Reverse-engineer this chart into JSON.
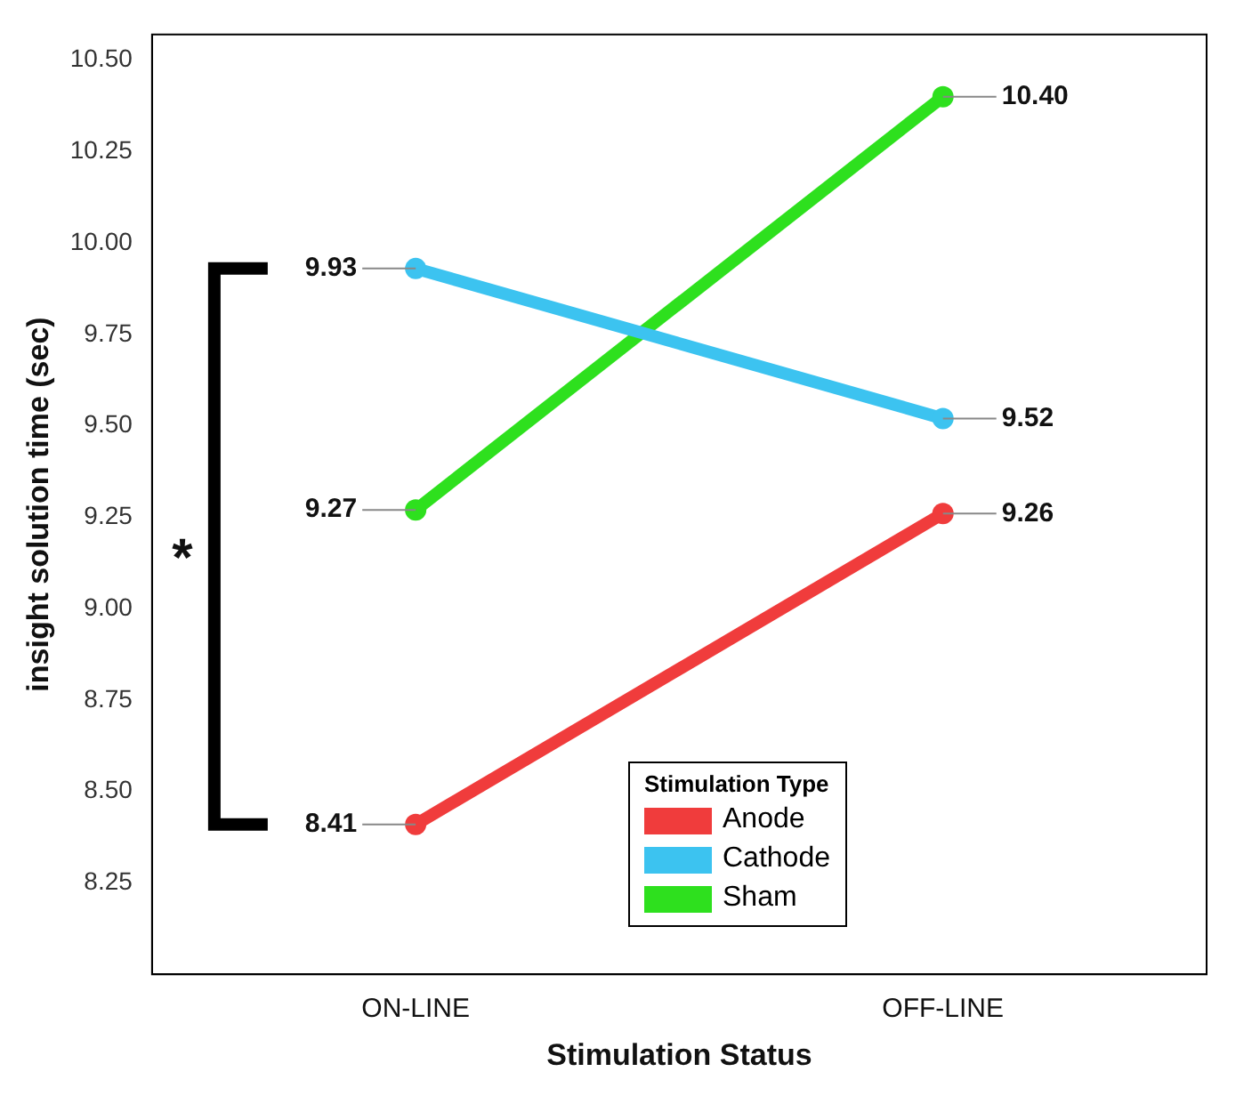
{
  "chart_data": {
    "type": "line",
    "xlabel": "Stimulation Status",
    "ylabel": "insight solution time (sec)",
    "legend_title": "Stimulation Type",
    "categories": [
      "ON-LINE",
      "OFF-LINE"
    ],
    "series": [
      {
        "name": "Anode",
        "color": "#f03c3c",
        "values": [
          8.41,
          9.26
        ],
        "value_labels": [
          "8.41",
          "9.26"
        ]
      },
      {
        "name": "Cathode",
        "color": "#3cc3f0",
        "values": [
          9.93,
          9.52
        ],
        "value_labels": [
          "9.93",
          "9.52"
        ]
      },
      {
        "name": "Sham",
        "color": "#2ee01e",
        "values": [
          9.27,
          10.4
        ],
        "value_labels": [
          "9.27",
          "10.40"
        ]
      }
    ],
    "ylim": [
      8.0,
      10.57
    ],
    "yticks": [
      {
        "value": 8.25,
        "label": "8.25"
      },
      {
        "value": 8.5,
        "label": "8.50"
      },
      {
        "value": 8.75,
        "label": "8.75"
      },
      {
        "value": 9,
        "label": "9.00"
      },
      {
        "value": 9.25,
        "label": "9.25"
      },
      {
        "value": 9.5,
        "label": "9.50"
      },
      {
        "value": 9.75,
        "label": "9.75"
      },
      {
        "value": 10,
        "label": "10.00"
      },
      {
        "value": 10.25,
        "label": "10.25"
      },
      {
        "value": 10.5,
        "label": "10.50"
      }
    ],
    "grid": false,
    "legend": "bottom",
    "marker": "circle",
    "line_style": "solid",
    "annotations": [
      "*"
    ]
  }
}
